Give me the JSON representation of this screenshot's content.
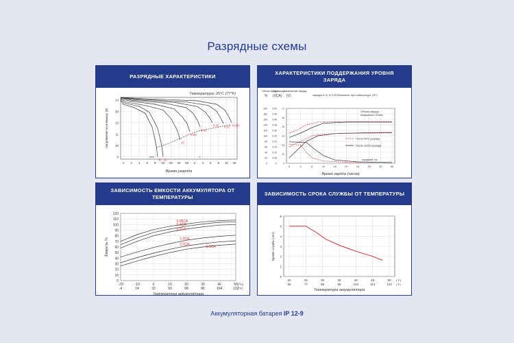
{
  "title": "Разрядные схемы",
  "footer": {
    "prefix": "Аккумуляторная батарея",
    "model": "IP 12-9"
  },
  "colors": {
    "brand": "#243a8a",
    "curve": "#333333",
    "red": "#e02a2a",
    "grid": "#cfcfcf"
  },
  "chart_data": [
    {
      "id": "discharge",
      "type": "line",
      "title": "РАЗРЯДНЫЕ ХАРАКТЕРИСТИКИ",
      "annotation": "Температура: 25°C (77°F)",
      "xlabel": "Время разряда",
      "ylabel": "Напряжение на клеммах (В)",
      "x_ticks": [
        "1",
        "2",
        "4",
        "6",
        "8",
        "10",
        "20",
        "40",
        "60",
        "2",
        "4",
        "6",
        "8",
        "10",
        "20"
      ],
      "x_units": [
        "Мин",
        "Ч"
      ],
      "y_ticks": [
        "9",
        "10",
        "11",
        "12",
        "13",
        "14"
      ],
      "ylim": [
        8.8,
        14.2
      ],
      "series": [
        {
          "name": "3C",
          "points": [
            [
              0,
              13.9
            ],
            [
              4,
              13.6
            ],
            [
              20,
              13.3
            ],
            [
              36,
              12.8
            ],
            [
              46,
              11.6
            ],
            [
              52,
              10.0
            ],
            [
              54,
              9.0
            ]
          ]
        },
        {
          "name": "2C",
          "points": [
            [
              0,
              14.0
            ],
            [
              6,
              13.7
            ],
            [
              28,
              13.4
            ],
            [
              42,
              12.9
            ],
            [
              54,
              11.5
            ],
            [
              60,
              10.0
            ],
            [
              62,
              9.0
            ]
          ]
        },
        {
          "name": "1C",
          "points": [
            [
              0,
              14.1
            ],
            [
              8,
              13.8
            ],
            [
              36,
              13.5
            ],
            [
              62,
              13.1
            ],
            [
              74,
              12.3
            ],
            [
              82,
              11.4
            ],
            [
              87,
              10.5
            ]
          ]
        },
        {
          "name": "0.6C",
          "points": [
            [
              0,
              14.15
            ],
            [
              12,
              13.9
            ],
            [
              50,
              13.6
            ],
            [
              78,
              13.2
            ],
            [
              90,
              12.5
            ],
            [
              97,
              11.9
            ],
            [
              101,
              11.2
            ]
          ]
        },
        {
          "name": "0.4C",
          "points": [
            [
              0,
              14.2
            ],
            [
              16,
              13.95
            ],
            [
              64,
              13.7
            ],
            [
              96,
              13.3
            ],
            [
              106,
              12.8
            ],
            [
              112,
              12.2
            ],
            [
              116,
              11.6
            ]
          ]
        },
        {
          "name": "0.2C",
          "points": [
            [
              0,
              14.2
            ],
            [
              20,
              14.0
            ],
            [
              80,
              13.75
            ],
            [
              112,
              13.4
            ],
            [
              124,
              12.9
            ],
            [
              130,
              12.4
            ],
            [
              134,
              12.0
            ]
          ]
        },
        {
          "name": "0.1C",
          "points": [
            [
              0,
              14.2
            ],
            [
              24,
              14.05
            ],
            [
              96,
              13.8
            ],
            [
              128,
              13.5
            ],
            [
              140,
              13.0
            ],
            [
              146,
              12.4
            ],
            [
              150,
              11.9
            ]
          ]
        },
        {
          "name": "0.05C",
          "points": [
            [
              0,
              14.2
            ],
            [
              28,
              14.1
            ],
            [
              112,
              13.9
            ],
            [
              140,
              13.6
            ],
            [
              152,
              13.1
            ],
            [
              158,
              12.5
            ],
            [
              162,
              12.0
            ]
          ]
        }
      ],
      "cutoff": {
        "points": [
          [
            52,
            9.8
          ],
          [
            62,
            10.0
          ],
          [
            87,
            10.6
          ],
          [
            101,
            11.0
          ],
          [
            116,
            11.3
          ],
          [
            134,
            11.5
          ],
          [
            150,
            11.7
          ],
          [
            162,
            11.8
          ]
        ]
      }
    },
    {
      "id": "charge",
      "type": "line",
      "title": "ХАРАКТЕРИСТИКИ ПОДДЕРЖАНИЯ УРОВНЯ ЗАРЯДА",
      "header_labels": [
        "Объем заряда",
        "%",
        "Ток заряда",
        "(ХСА)",
        "Напряжение заряда",
        "(V)"
      ],
      "note": "зарядка 0,1С А 2,25 В/элемент при температуре 25°C",
      "xlabel": "Время заряда (часов)",
      "x_ticks": [
        "0",
        "4",
        "8",
        "12",
        "16",
        "20",
        "24",
        "28",
        "32",
        "36"
      ],
      "y_capacity": [
        "0",
        "20",
        "40",
        "60",
        "80",
        "100",
        "120",
        "140",
        "160",
        "180",
        "200"
      ],
      "y_current": [
        "0",
        "0.05",
        "0.10",
        "0.15",
        "0.20",
        "0.25",
        "0.30",
        "0.35",
        "0.40",
        "0.45",
        "0.50"
      ],
      "y_voltage": [
        "0",
        "12",
        "13",
        "14",
        "15",
        "16",
        "17"
      ],
      "legend": [
        "После 50% разряда",
        "После 100% разряда"
      ],
      "labels": [
        "Объем заряда",
        "Напряжение 2,25 В/эл",
        "зарядный ток"
      ]
    },
    {
      "id": "capacity",
      "type": "line",
      "title": "ЗАВИСИМОСТЬ ЕМКОСТИ АККУМУЛЯТОРА ОТ ТЕМПЕРАТУРЫ",
      "xlabel": "Температура аккумулятора",
      "ylabel": "Ёмкость %",
      "x_ticks_c": [
        "-20",
        "-10",
        "0",
        "10",
        "20",
        "30",
        "40",
        "50"
      ],
      "x_ticks_f": [
        "-4",
        "14",
        "32",
        "50",
        "68",
        "86",
        "104",
        "122"
      ],
      "x_unit_c": "(°C)",
      "x_unit_f": "(°F)",
      "y_ticks": [
        "0",
        "10",
        "20",
        "30",
        "40",
        "50",
        "60",
        "70",
        "80",
        "90",
        "100",
        "110",
        "120"
      ],
      "xlim": [
        -20,
        50
      ],
      "ylim": [
        0,
        120
      ],
      "series": [
        {
          "name": "0.05CA",
          "points": [
            [
              -20,
              70
            ],
            [
              -10,
              82
            ],
            [
              0,
              91
            ],
            [
              10,
              97
            ],
            [
              20,
              101
            ],
            [
              30,
              105
            ],
            [
              40,
              107
            ],
            [
              50,
              108
            ]
          ]
        },
        {
          "name": "0.1CA",
          "points": [
            [
              -20,
              64
            ],
            [
              -10,
              76
            ],
            [
              0,
              86
            ],
            [
              10,
              92
            ],
            [
              20,
              97
            ],
            [
              30,
              101
            ],
            [
              40,
              104
            ],
            [
              50,
              105
            ]
          ]
        },
        {
          "name": "0.2CA",
          "points": [
            [
              -20,
              58
            ],
            [
              -10,
              70
            ],
            [
              0,
              80
            ],
            [
              10,
              87
            ],
            [
              20,
              92
            ],
            [
              30,
              96
            ],
            [
              40,
              99
            ],
            [
              50,
              100
            ]
          ]
        },
        {
          "name": "1.0CA",
          "points": [
            [
              -20,
              42
            ],
            [
              -10,
              51
            ],
            [
              0,
              59
            ],
            [
              10,
              66
            ],
            [
              20,
              72
            ],
            [
              30,
              76
            ],
            [
              40,
              79
            ],
            [
              50,
              81
            ]
          ]
        },
        {
          "name": "2.0CA",
          "points": [
            [
              -20,
              32
            ],
            [
              -10,
              41
            ],
            [
              0,
              49
            ],
            [
              10,
              56
            ],
            [
              20,
              62
            ],
            [
              30,
              66
            ],
            [
              40,
              69
            ],
            [
              50,
              71
            ]
          ]
        },
        {
          "name": "3.0CA",
          "points": [
            [
              -20,
              26
            ],
            [
              -10,
              35
            ],
            [
              0,
              43
            ],
            [
              10,
              50
            ],
            [
              20,
              56
            ],
            [
              30,
              60
            ],
            [
              40,
              63
            ],
            [
              50,
              65
            ]
          ]
        }
      ]
    },
    {
      "id": "service_life",
      "type": "line",
      "title": "ЗАВИСИМОСТЬ СРОКА СЛУЖБЫ ОТ ТЕМПЕРАТУРЫ",
      "xlabel": "Температура аккумулятора",
      "ylabel": "Время службы (лет)",
      "x_ticks_c": [
        "20",
        "25",
        "30",
        "35",
        "40",
        "45",
        "50"
      ],
      "x_ticks_f": [
        "68",
        "77",
        "86",
        "95",
        "104",
        "113",
        "122"
      ],
      "x_unit_c": "(°C)",
      "x_unit_f": "(°F)",
      "y_ticks": [
        "0",
        "1",
        "2",
        "3",
        "4",
        "5",
        "6"
      ],
      "xlim": [
        20,
        50
      ],
      "ylim": [
        0,
        6
      ],
      "series": [
        {
          "name": "life",
          "points": [
            [
              20,
              5
            ],
            [
              25,
              5
            ],
            [
              28,
              4.4
            ],
            [
              31,
              3.7
            ],
            [
              35,
              3.1
            ],
            [
              40,
              2.5
            ],
            [
              45,
              2.0
            ],
            [
              48,
              1.6
            ]
          ]
        }
      ]
    }
  ]
}
